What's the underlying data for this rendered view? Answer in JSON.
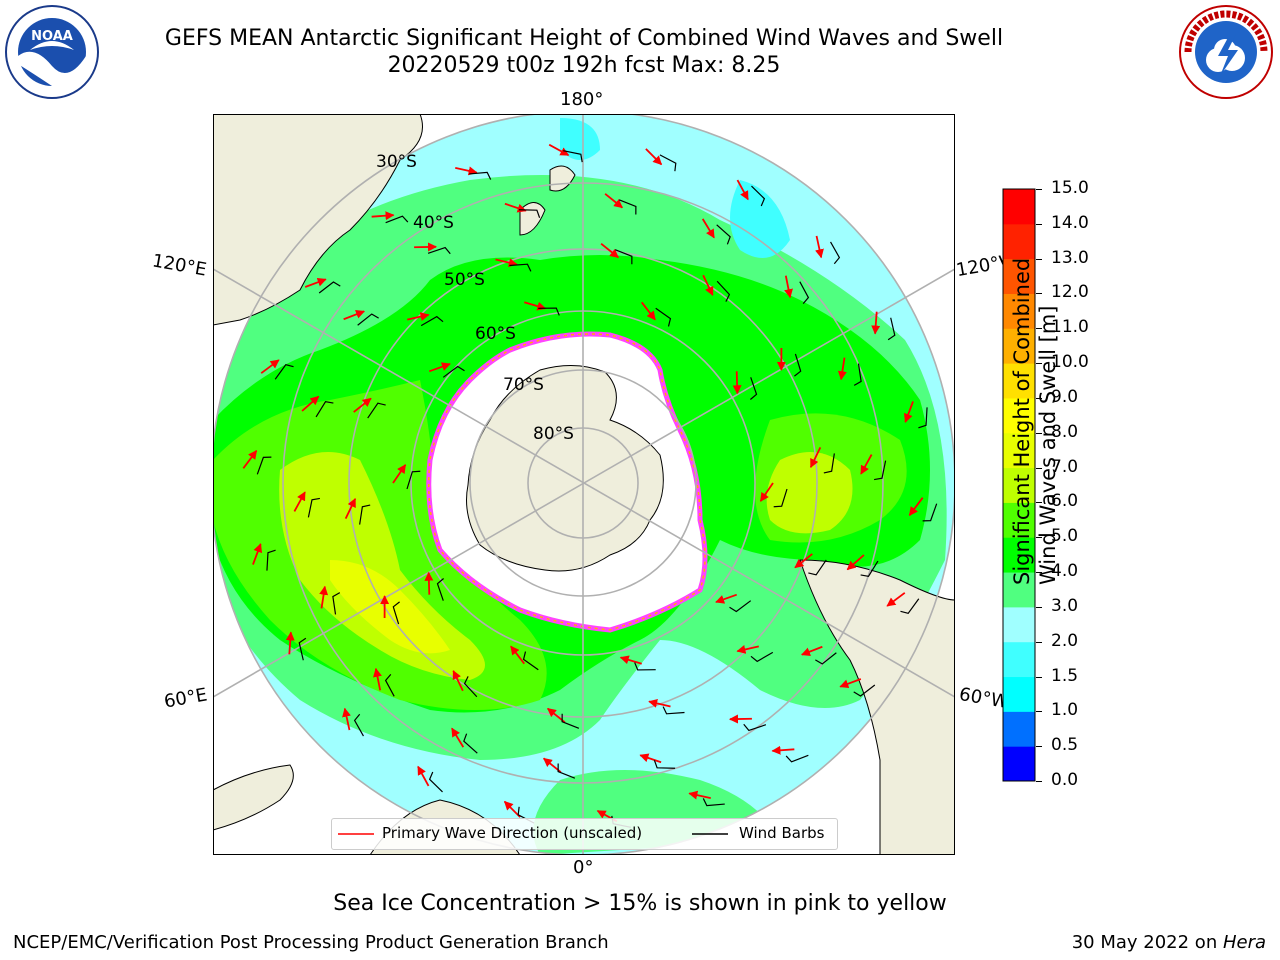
{
  "header": {
    "title_line1": "GEFS MEAN Antarctic Significant Height of Combined Wind Waves and Swell",
    "title_line2": "20220529 t00z 192h fcst   Max: 8.25"
  },
  "map": {
    "longitude_labels": {
      "top": "180°",
      "left": "120°E",
      "right": "120°W",
      "lower_left": "60°E",
      "lower_right": "60°W",
      "bottom": "0°"
    },
    "latitude_labels": [
      "30°S",
      "40°S",
      "50°S",
      "60°S",
      "70°S",
      "80°S"
    ],
    "legend": {
      "wave_label": "Primary Wave Direction (unscaled)",
      "wind_label": "Wind Barbs"
    },
    "colors": {
      "land": "#efeedc",
      "ice": "#ffffff",
      "ice_edge": "#ff44ff",
      "grid": "#b0b0b0",
      "arrow": "#ff0000"
    }
  },
  "colorbar": {
    "title_line1": "Significant Height of Combined",
    "title_line2": "Wind Waves and Swell [m]",
    "ticks": [
      "0.0",
      "0.5",
      "1.0",
      "1.5",
      "2.0",
      "3.0",
      "4.0",
      "5.0",
      "6.0",
      "7.0",
      "8.0",
      "9.0",
      "10.0",
      "11.0",
      "12.0",
      "13.0",
      "14.0",
      "15.0"
    ],
    "colors": [
      "#0000ff",
      "#0070ff",
      "#00ffff",
      "#40ffff",
      "#a0ffff",
      "#50ff80",
      "#00ff00",
      "#50ff00",
      "#bfff00",
      "#e8ff00",
      "#ffff00",
      "#ffe000",
      "#ffb000",
      "#ff8800",
      "#ff5500",
      "#ff2200",
      "#ff0000"
    ]
  },
  "footer": {
    "note": "Sea Ice Concentration > 15% is shown in pink to yellow",
    "left": "NCEP/EMC/Verification Post Processing Product Generation Branch",
    "right_prefix": "30 May 2022 on ",
    "right_host": "Hera"
  },
  "logos": {
    "left": "NOAA",
    "right": "NATIONAL WEATHER SERVICE"
  }
}
